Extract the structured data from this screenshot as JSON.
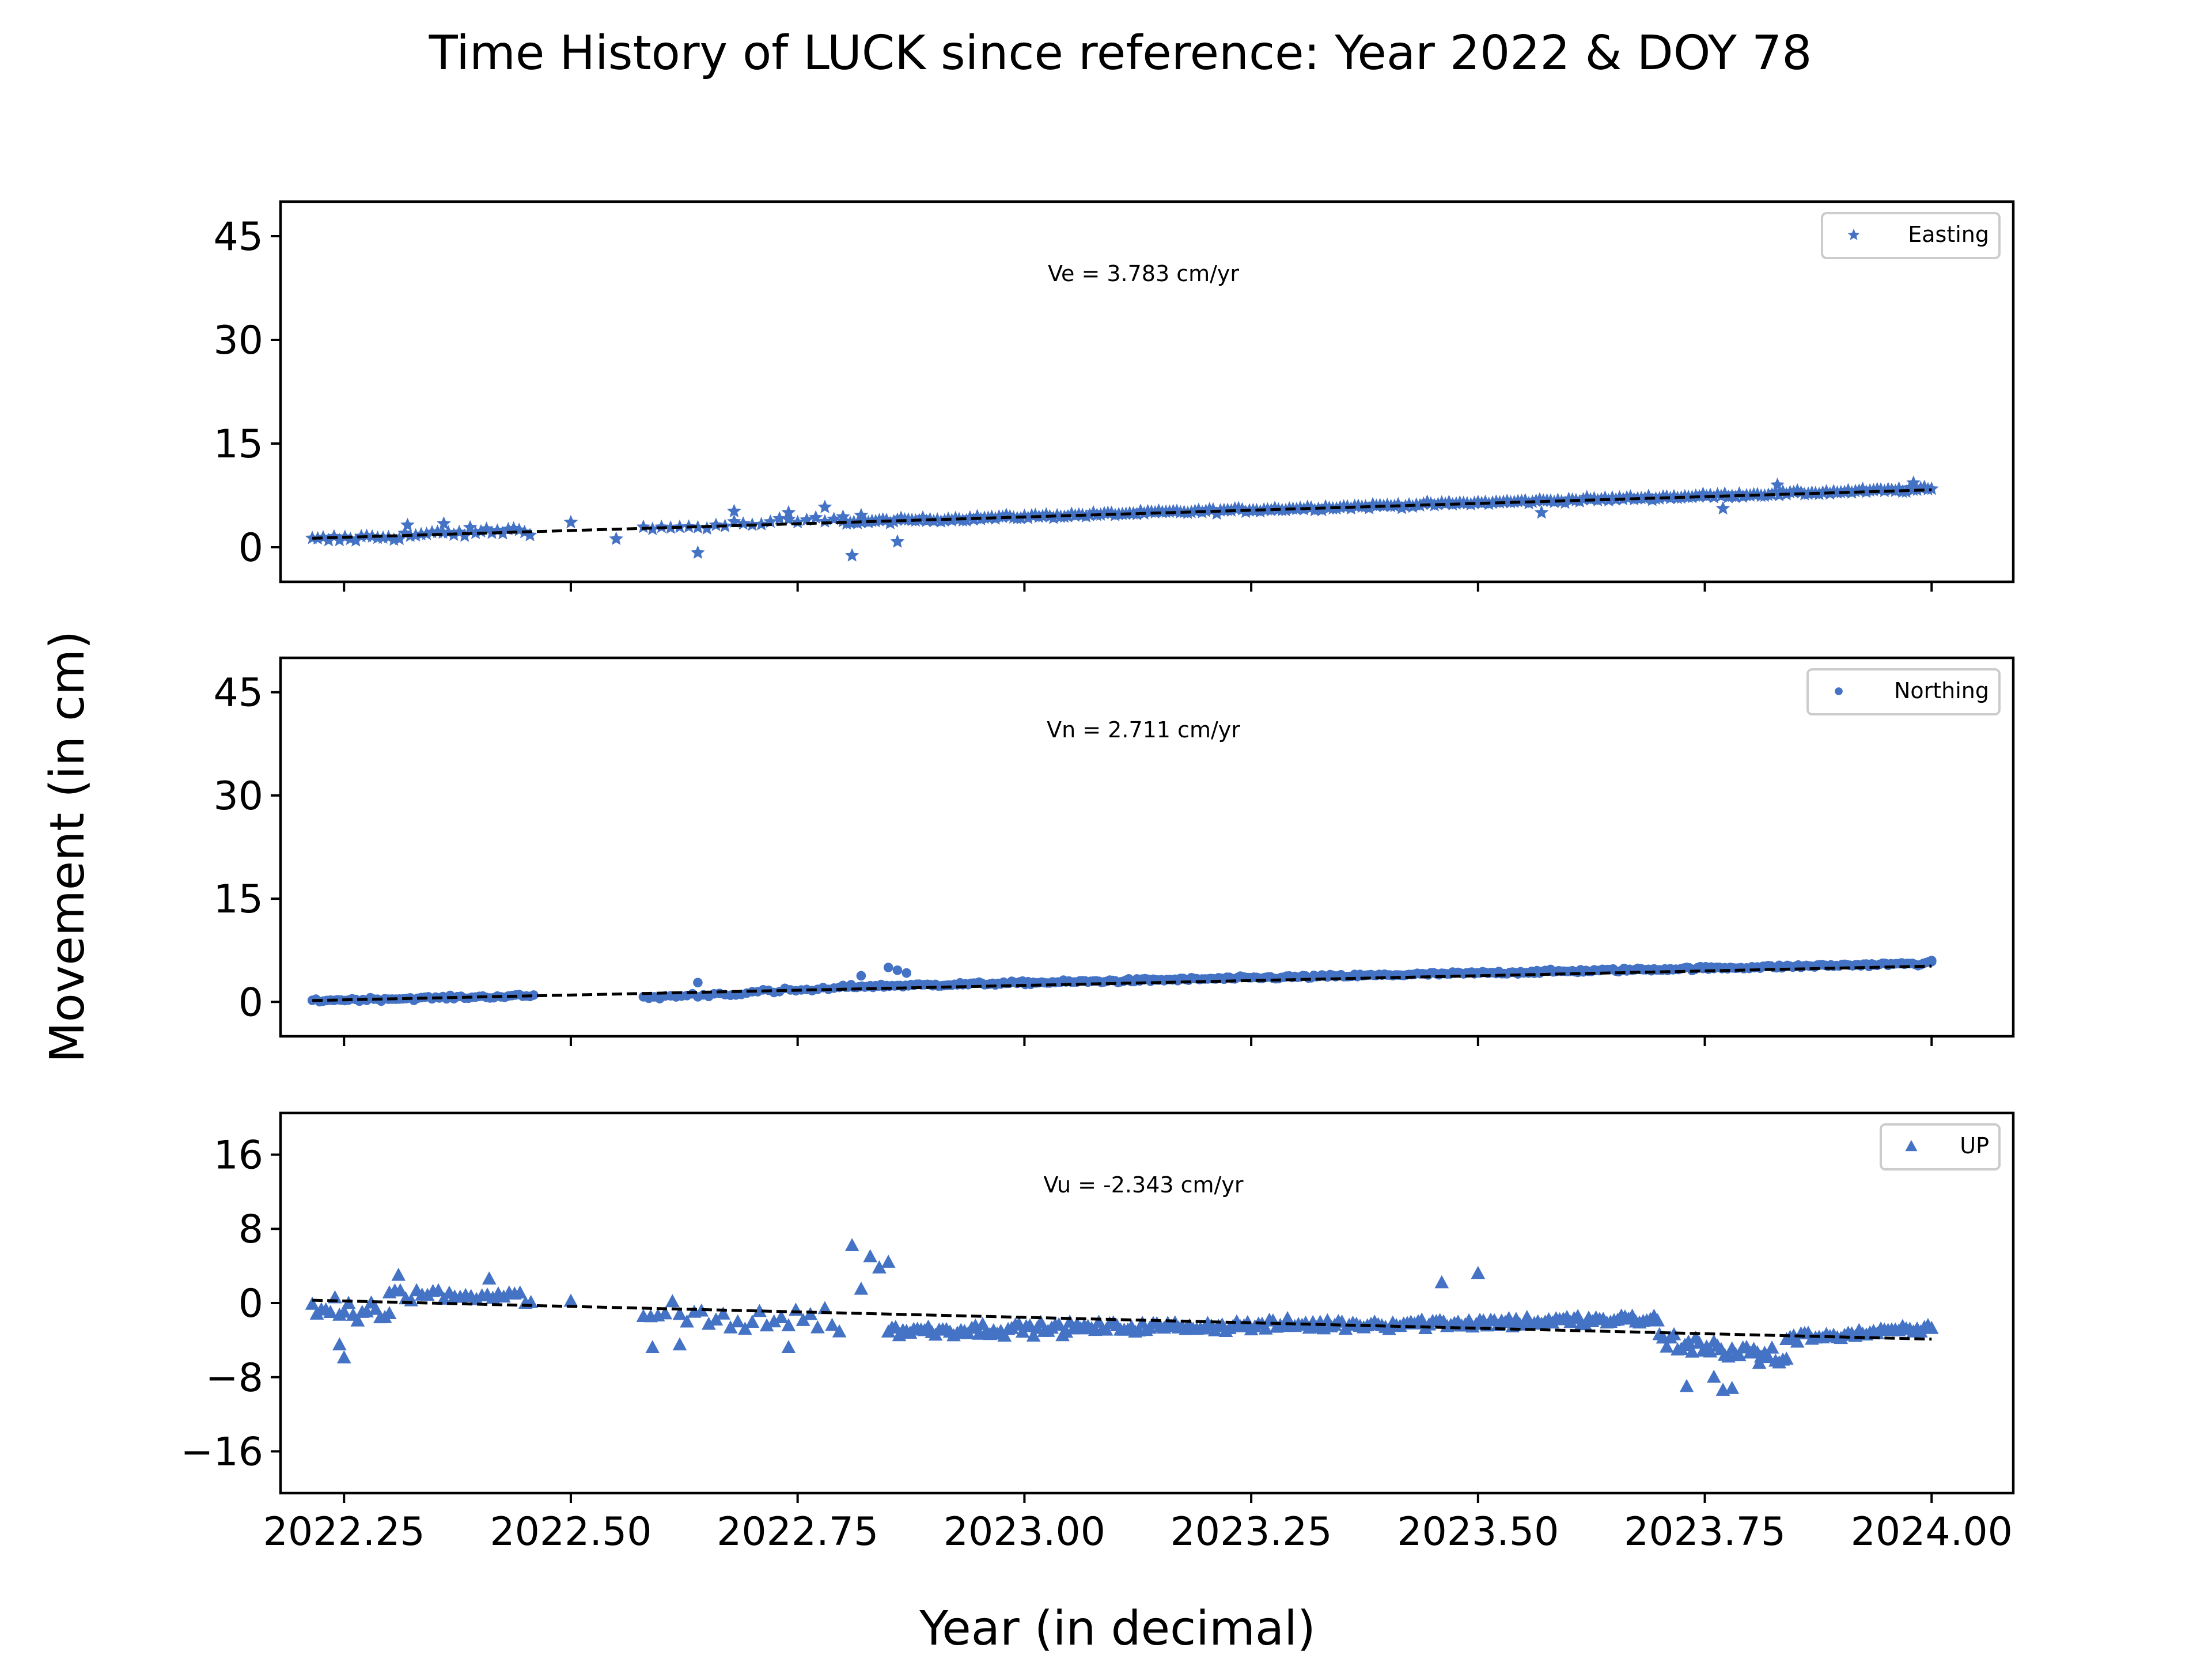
{
  "figure": {
    "title": "Time History of LUCK since reference: Year 2022 & DOY 78",
    "ylabel": "Movement (in cm)",
    "xlabel": "Year (in decimal)"
  },
  "colors": {
    "marker": "#4472c4",
    "trend": "#000000"
  },
  "chart_data": [
    {
      "type": "scatter",
      "component": "Easting",
      "legend": "Easting",
      "marker": "star",
      "velocity_label": "Ve =  3.783 cm/yr",
      "xlim": [
        2022.18,
        2024.09
      ],
      "ylim": [
        -5,
        50
      ],
      "yticks": [
        0,
        15,
        30,
        45
      ],
      "xticks": [
        2022.25,
        2022.5,
        2022.75,
        2023.0,
        2023.25,
        2023.5,
        2023.75,
        2024.0
      ],
      "show_xtick_labels": false,
      "trend": {
        "x": [
          2022.215,
          2024.0
        ],
        "y": [
          1.3,
          8.3
        ]
      },
      "segments": [
        {
          "x0": 2022.215,
          "x1": 2022.46,
          "step": 0.006,
          "y0": 1.0,
          "y1": 2.6,
          "noise": 0.9
        },
        {
          "x0": 2022.58,
          "x1": 2022.8,
          "step": 0.01,
          "y0": 2.6,
          "y1": 4.0,
          "noise": 1.0
        },
        {
          "x0": 2022.8,
          "x1": 2024.0,
          "step": 0.004,
          "y0": 3.6,
          "y1": 8.4,
          "noise": 0.45
        }
      ],
      "extra_points": [
        {
          "x": 2022.32,
          "y": 3.2
        },
        {
          "x": 2022.36,
          "y": 3.4
        },
        {
          "x": 2022.5,
          "y": 3.6
        },
        {
          "x": 2022.55,
          "y": 1.2
        },
        {
          "x": 2022.64,
          "y": -0.8
        },
        {
          "x": 2022.68,
          "y": 5.2
        },
        {
          "x": 2022.74,
          "y": 5.0
        },
        {
          "x": 2022.78,
          "y": 5.8
        },
        {
          "x": 2022.81,
          "y": -1.2
        },
        {
          "x": 2022.82,
          "y": 4.6
        },
        {
          "x": 2022.86,
          "y": 0.8
        },
        {
          "x": 2023.57,
          "y": 5.0
        },
        {
          "x": 2023.77,
          "y": 5.6
        },
        {
          "x": 2023.83,
          "y": 9.0
        },
        {
          "x": 2023.98,
          "y": 9.3
        }
      ]
    },
    {
      "type": "scatter",
      "component": "Northing",
      "legend": "Northing",
      "marker": "circle",
      "velocity_label": "Vn =  2.711 cm/yr",
      "xlim": [
        2022.18,
        2024.09
      ],
      "ylim": [
        -5,
        50
      ],
      "yticks": [
        0,
        15,
        30,
        45
      ],
      "xticks": [
        2022.25,
        2022.5,
        2022.75,
        2023.0,
        2023.25,
        2023.5,
        2023.75,
        2024.0
      ],
      "show_xtick_labels": false,
      "trend": {
        "x": [
          2022.215,
          2024.0
        ],
        "y": [
          0.2,
          5.2
        ]
      },
      "segments": [
        {
          "x0": 2022.215,
          "x1": 2022.46,
          "step": 0.004,
          "y0": 0.2,
          "y1": 0.9,
          "noise": 0.35
        },
        {
          "x0": 2022.58,
          "x1": 2022.8,
          "step": 0.006,
          "y0": 0.6,
          "y1": 2.0,
          "noise": 0.5
        },
        {
          "x0": 2022.8,
          "x1": 2024.0,
          "step": 0.003,
          "y0": 2.2,
          "y1": 5.6,
          "noise": 0.35
        }
      ],
      "extra_points": [
        {
          "x": 2022.64,
          "y": 2.8
        },
        {
          "x": 2022.82,
          "y": 3.8
        },
        {
          "x": 2022.85,
          "y": 5.0
        },
        {
          "x": 2022.86,
          "y": 4.6
        },
        {
          "x": 2022.87,
          "y": 4.2
        },
        {
          "x": 2023.68,
          "y": 4.8
        },
        {
          "x": 2024.0,
          "y": 6.0
        }
      ]
    },
    {
      "type": "scatter",
      "component": "UP",
      "legend": "UP",
      "marker": "triangle",
      "velocity_label": "Vu = -2.343 cm/yr",
      "xlim": [
        2022.18,
        2024.09
      ],
      "ylim": [
        -20.5,
        20.5
      ],
      "yticks": [
        -16,
        -8,
        0,
        8,
        16
      ],
      "xticks": [
        2022.25,
        2022.5,
        2022.75,
        2023.0,
        2023.25,
        2023.5,
        2023.75,
        2024.0
      ],
      "xtick_labels": [
        "2022.25",
        "2022.50",
        "2022.75",
        "2023.00",
        "2023.25",
        "2023.50",
        "2023.75",
        "2024.00"
      ],
      "show_xtick_labels": true,
      "trend": {
        "x": [
          2022.215,
          2024.0
        ],
        "y": [
          0.3,
          -3.9
        ]
      },
      "segments": [
        {
          "x0": 2022.215,
          "x1": 2022.3,
          "step": 0.005,
          "y0": -0.5,
          "y1": -1.2,
          "noise": 1.6
        },
        {
          "x0": 2022.3,
          "x1": 2022.46,
          "step": 0.006,
          "y0": 1.0,
          "y1": 0.5,
          "noise": 1.2
        },
        {
          "x0": 2022.58,
          "x1": 2022.8,
          "step": 0.008,
          "y0": -1.5,
          "y1": -1.8,
          "noise": 2.2
        },
        {
          "x0": 2022.85,
          "x1": 2023.7,
          "step": 0.004,
          "y0": -3.0,
          "y1": -1.8,
          "noise": 0.9
        },
        {
          "x0": 2023.7,
          "x1": 2023.84,
          "step": 0.004,
          "y0": -4.0,
          "y1": -6.0,
          "noise": 1.6
        },
        {
          "x0": 2023.84,
          "x1": 2024.0,
          "step": 0.004,
          "y0": -3.8,
          "y1": -2.8,
          "noise": 0.7
        }
      ],
      "extra_points": [
        {
          "x": 2022.25,
          "y": -5.9
        },
        {
          "x": 2022.245,
          "y": -4.5
        },
        {
          "x": 2022.31,
          "y": 3.0
        },
        {
          "x": 2022.41,
          "y": 2.6
        },
        {
          "x": 2022.5,
          "y": 0.2
        },
        {
          "x": 2022.59,
          "y": -4.8
        },
        {
          "x": 2022.62,
          "y": -4.5
        },
        {
          "x": 2022.74,
          "y": -4.8
        },
        {
          "x": 2022.81,
          "y": 6.2
        },
        {
          "x": 2022.83,
          "y": 5.0
        },
        {
          "x": 2022.84,
          "y": 3.8
        },
        {
          "x": 2022.85,
          "y": 4.4
        },
        {
          "x": 2022.82,
          "y": 1.5
        },
        {
          "x": 2023.46,
          "y": 2.2
        },
        {
          "x": 2023.5,
          "y": 3.2
        },
        {
          "x": 2023.73,
          "y": -9.0
        },
        {
          "x": 2023.77,
          "y": -9.4
        },
        {
          "x": 2023.78,
          "y": -9.2
        },
        {
          "x": 2023.76,
          "y": -8.0
        },
        {
          "x": 2023.81,
          "y": -6.5
        }
      ]
    }
  ]
}
